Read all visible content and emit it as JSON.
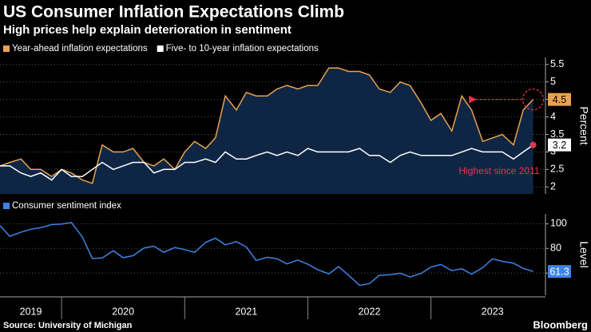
{
  "chart_data": [
    {
      "type": "line",
      "title": "US Consumer Inflation Expectations Climb",
      "subtitle": "High prices help explain deterioration in sentiment",
      "x": [
        2019.5,
        2019.58,
        2019.67,
        2019.75,
        2019.83,
        2019.92,
        2020,
        2020.08,
        2020.17,
        2020.25,
        2020.33,
        2020.42,
        2020.5,
        2020.58,
        2020.67,
        2020.75,
        2020.83,
        2020.92,
        2021,
        2021.08,
        2021.17,
        2021.25,
        2021.33,
        2021.42,
        2021.5,
        2021.58,
        2021.67,
        2021.75,
        2021.83,
        2021.92,
        2022,
        2022.08,
        2022.17,
        2022.25,
        2022.33,
        2022.42,
        2022.5,
        2022.58,
        2022.67,
        2022.75,
        2022.83,
        2022.92,
        2023,
        2023.08,
        2023.17,
        2023.25,
        2023.33,
        2023.42,
        2023.5,
        2023.58,
        2023.67,
        2023.75,
        2023.83
      ],
      "xlim": [
        2019.5,
        2023.93
      ],
      "xticks": [
        {
          "value": 2019.75,
          "label": "2019"
        },
        {
          "value": 2020.5,
          "label": "2020"
        },
        {
          "value": 2021.5,
          "label": "2021"
        },
        {
          "value": 2022.5,
          "label": "2022"
        },
        {
          "value": 2023.5,
          "label": "2023"
        }
      ],
      "series": [
        {
          "name": "Year-ahead inflation expectations",
          "color": "#e9a250",
          "fill": "#0e2644",
          "values": [
            2.6,
            2.7,
            2.8,
            2.5,
            2.5,
            2.3,
            2.5,
            2.4,
            2.2,
            2.1,
            3.2,
            3.0,
            3.0,
            3.1,
            2.7,
            2.6,
            2.8,
            2.5,
            3.0,
            3.3,
            3.1,
            3.4,
            4.6,
            4.2,
            4.7,
            4.6,
            4.6,
            4.8,
            4.9,
            4.8,
            4.9,
            4.9,
            5.4,
            5.4,
            5.3,
            5.3,
            5.2,
            4.8,
            4.7,
            5.0,
            4.9,
            4.4,
            3.9,
            4.1,
            3.6,
            4.6,
            4.2,
            3.3,
            3.4,
            3.5,
            3.2,
            4.2,
            4.5
          ]
        },
        {
          "name": "Five- to 10-year inflation expectations",
          "color": "#ffffff",
          "values": [
            2.6,
            2.6,
            2.4,
            2.3,
            2.4,
            2.2,
            2.5,
            2.3,
            2.3,
            2.5,
            2.7,
            2.5,
            2.6,
            2.7,
            2.7,
            2.4,
            2.5,
            2.5,
            2.7,
            2.7,
            2.8,
            2.7,
            3.0,
            2.8,
            2.8,
            2.9,
            3.0,
            2.9,
            3.0,
            2.9,
            3.1,
            3.0,
            3.0,
            3.0,
            3.0,
            3.1,
            2.9,
            2.9,
            2.7,
            2.9,
            3.0,
            2.9,
            2.9,
            2.9,
            2.9,
            3.0,
            3.1,
            3.0,
            3.0,
            3.0,
            2.8,
            3.0,
            3.2
          ]
        }
      ],
      "ylim": [
        1.8,
        5.7
      ],
      "yticks": [
        2.0,
        2.5,
        3.0,
        3.5,
        4.0,
        4.5,
        5.0,
        5.5
      ],
      "y_label": "Percent",
      "grid": true,
      "annotation": "Highest since 2011",
      "annotation_color": "#e8344e"
    },
    {
      "type": "line",
      "series": [
        {
          "name": "Consumer sentiment index",
          "color": "#3f84e5",
          "values": [
            98.4,
            89.8,
            93.2,
            95.5,
            96.8,
            99.3,
            99.8,
            101.0,
            89.1,
            71.8,
            72.3,
            78.1,
            72.5,
            74.1,
            80.4,
            81.8,
            76.9,
            80.7,
            79.0,
            76.8,
            84.9,
            88.3,
            82.9,
            85.5,
            81.2,
            70.3,
            72.8,
            71.7,
            67.4,
            70.6,
            67.2,
            62.8,
            59.4,
            65.2,
            58.4,
            50.0,
            51.5,
            58.2,
            58.6,
            59.9,
            56.8,
            59.7,
            64.9,
            67.0,
            62.0,
            63.5,
            59.2,
            64.4,
            71.6,
            69.5,
            68.1,
            63.8,
            61.3
          ]
        }
      ],
      "ylim": [
        42,
        108
      ],
      "yticks": [
        60,
        80,
        100
      ],
      "y_label": "Level",
      "grid": true
    }
  ],
  "source": "Source: University of Michigan",
  "brand": "Bloomberg"
}
